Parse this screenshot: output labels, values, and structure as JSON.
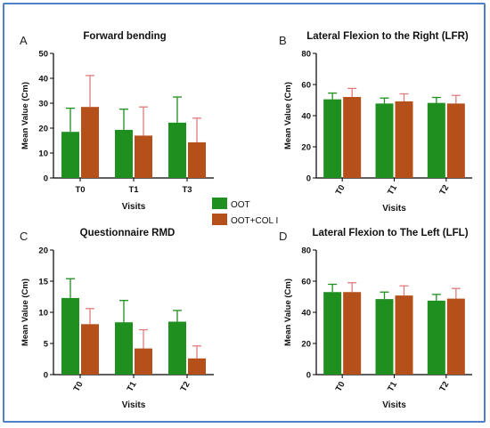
{
  "colors": {
    "oot": "#1f8f1f",
    "oot_col": "#b5501b",
    "oot_err": "#1f8f1f",
    "oot_col_err": "#e27b80",
    "border": "#4f7fc4"
  },
  "legend": {
    "items": [
      {
        "label": "OOT",
        "color": "#1f8f1f"
      },
      {
        "label": "OOT+COL I",
        "color": "#b5501b"
      }
    ],
    "placement": "center"
  },
  "chart_data": [
    {
      "type": "bar",
      "panel_letter": "A",
      "title": "Forward bending",
      "xlabel": "Visits",
      "ylabel": "Mean Value (Cm)",
      "ylim": [
        0,
        50
      ],
      "yticks": [
        0,
        10,
        20,
        30,
        40,
        50
      ],
      "categories": [
        "T0",
        "T1",
        "T3"
      ],
      "rotate_xticks": false,
      "series": [
        {
          "name": "OOT",
          "values": [
            18.5,
            19.3,
            22.2
          ],
          "errors": [
            9.5,
            8.3,
            10.3
          ]
        },
        {
          "name": "OOT+COL I",
          "values": [
            28.5,
            17.0,
            14.3
          ],
          "errors": [
            12.6,
            11.5,
            9.7
          ]
        }
      ]
    },
    {
      "type": "bar",
      "panel_letter": "B",
      "title": "Lateral Flexion to the Right (LFR)",
      "xlabel": "Visits",
      "ylabel": "Mean Value (Cm)",
      "ylim": [
        0,
        80
      ],
      "yticks": [
        0,
        20,
        40,
        60,
        80
      ],
      "categories": [
        "T0",
        "T1",
        "T2"
      ],
      "rotate_xticks": true,
      "series": [
        {
          "name": "OOT",
          "values": [
            50.5,
            47.8,
            48.2
          ],
          "errors": [
            4.0,
            3.5,
            3.5
          ]
        },
        {
          "name": "OOT+COL I",
          "values": [
            52.0,
            49.2,
            47.8
          ],
          "errors": [
            5.5,
            4.8,
            5.2
          ]
        }
      ]
    },
    {
      "type": "bar",
      "panel_letter": "C",
      "title": "Questionnaire RMD",
      "xlabel": "Visits",
      "ylabel": "Mean Value (Cm)",
      "ylim": [
        0,
        20
      ],
      "yticks": [
        0,
        5,
        10,
        15,
        20
      ],
      "categories": [
        "T0",
        "T1",
        "T2"
      ],
      "rotate_xticks": true,
      "series": [
        {
          "name": "OOT",
          "values": [
            12.3,
            8.4,
            8.5
          ],
          "errors": [
            3.1,
            3.5,
            1.8
          ]
        },
        {
          "name": "OOT+COL I",
          "values": [
            8.1,
            4.2,
            2.6
          ],
          "errors": [
            2.5,
            3.0,
            2.0
          ]
        }
      ]
    },
    {
      "type": "bar",
      "panel_letter": "D",
      "title": "Lateral Flexion to The Left (LFL)",
      "xlabel": "Visits",
      "ylabel": "Mean Value (Cm)",
      "ylim": [
        0,
        80
      ],
      "yticks": [
        0,
        20,
        40,
        60,
        80
      ],
      "categories": [
        "T0",
        "T1",
        "T2"
      ],
      "rotate_xticks": true,
      "series": [
        {
          "name": "OOT",
          "values": [
            53.0,
            48.5,
            47.5
          ],
          "errors": [
            5.0,
            4.5,
            4.0
          ]
        },
        {
          "name": "OOT+COL I",
          "values": [
            53.0,
            50.8,
            48.8
          ],
          "errors": [
            6.0,
            6.2,
            6.5
          ]
        }
      ]
    }
  ]
}
